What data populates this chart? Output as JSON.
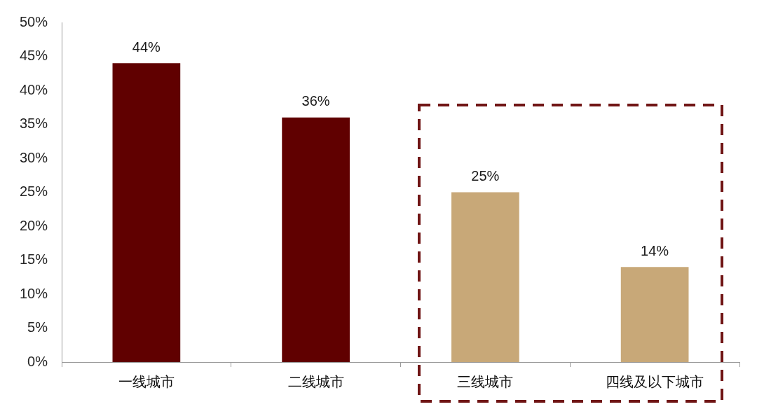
{
  "chart_data": {
    "type": "bar",
    "categories": [
      "一线城市",
      "二线城市",
      "三线城市",
      "四线及以下城市"
    ],
    "values": [
      44,
      36,
      25,
      14
    ],
    "colors": [
      "#600000",
      "#600000",
      "#c8a878",
      "#c8a878"
    ],
    "value_labels": [
      "44%",
      "36%",
      "25%",
      "14%"
    ],
    "ylim": [
      0,
      50
    ],
    "yticks": [
      {
        "value": 0,
        "label": "0%"
      },
      {
        "value": 5,
        "label": "5%"
      },
      {
        "value": 10,
        "label": "10%"
      },
      {
        "value": 15,
        "label": "15%"
      },
      {
        "value": 20,
        "label": "20%"
      },
      {
        "value": 25,
        "label": "25%"
      },
      {
        "value": 30,
        "label": "30%"
      },
      {
        "value": 35,
        "label": "35%"
      },
      {
        "value": 40,
        "label": "40%"
      },
      {
        "value": 45,
        "label": "45%"
      },
      {
        "value": 50,
        "label": "50%"
      }
    ]
  }
}
